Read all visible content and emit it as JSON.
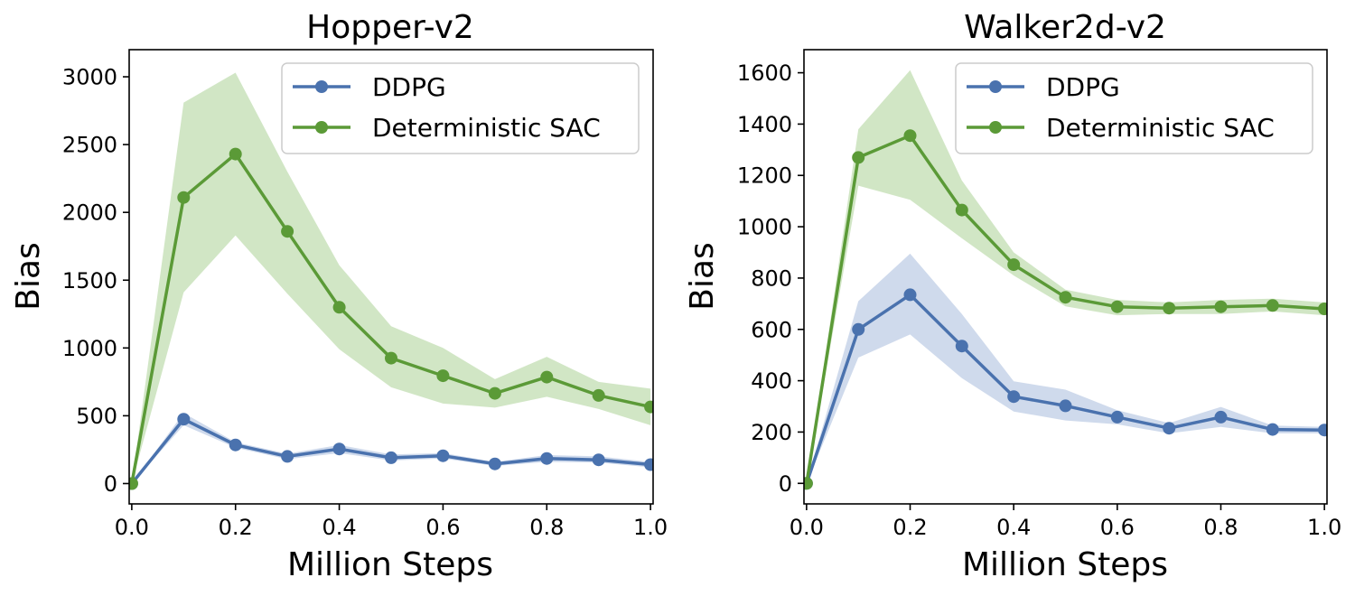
{
  "colors": {
    "ddpg": "#4a72ae",
    "ddpg_fill": "#a8bcdc",
    "dsac": "#5b9a37",
    "dsac_fill": "#acd295",
    "axis": "#000000",
    "legend_border": "#cccccc"
  },
  "chart_data": [
    {
      "type": "line",
      "title": "Hopper-v2",
      "xlabel": "Million Steps",
      "ylabel": "Bias",
      "xlim": [
        -0.005,
        1.005
      ],
      "ylim": [
        -150,
        3200
      ],
      "xticks": [
        0.0,
        0.2,
        0.4,
        0.6,
        0.8,
        1.0
      ],
      "xtick_labels": [
        "0.0",
        "0.2",
        "0.4",
        "0.6",
        "0.8",
        "1.0"
      ],
      "yticks": [
        0,
        500,
        1000,
        1500,
        2000,
        2500,
        3000
      ],
      "ytick_labels": [
        "0",
        "500",
        "1000",
        "1500",
        "2000",
        "2500",
        "3000"
      ],
      "legend_position": "top-right",
      "grid": false,
      "x": [
        0.0,
        0.1,
        0.2,
        0.3,
        0.4,
        0.5,
        0.6,
        0.7,
        0.8,
        0.9,
        1.0
      ],
      "series": [
        {
          "name": "DDPG",
          "values": [
            0,
            475,
            285,
            200,
            255,
            190,
            205,
            145,
            185,
            175,
            140
          ],
          "lower": [
            0,
            430,
            265,
            180,
            225,
            170,
            185,
            130,
            160,
            155,
            120
          ],
          "upper": [
            0,
            520,
            305,
            220,
            285,
            215,
            225,
            160,
            210,
            200,
            160
          ]
        },
        {
          "name": "Deterministic SAC",
          "values": [
            0,
            2110,
            2430,
            1860,
            1300,
            925,
            795,
            665,
            785,
            650,
            565
          ],
          "lower": [
            0,
            1410,
            1830,
            1400,
            990,
            710,
            590,
            560,
            640,
            550,
            430
          ],
          "upper": [
            0,
            2810,
            3030,
            2300,
            1610,
            1160,
            1000,
            770,
            935,
            750,
            700
          ]
        }
      ]
    },
    {
      "type": "line",
      "title": "Walker2d-v2",
      "xlabel": "Million Steps",
      "ylabel": "Bias",
      "xlim": [
        -0.005,
        1.005
      ],
      "ylim": [
        -80,
        1690
      ],
      "xticks": [
        0.0,
        0.2,
        0.4,
        0.6,
        0.8,
        1.0
      ],
      "xtick_labels": [
        "0.0",
        "0.2",
        "0.4",
        "0.6",
        "0.8",
        "1.0"
      ],
      "yticks": [
        0,
        200,
        400,
        600,
        800,
        1000,
        1200,
        1400,
        1600
      ],
      "ytick_labels": [
        "0",
        "200",
        "400",
        "600",
        "800",
        "1000",
        "1200",
        "1400",
        "1600"
      ],
      "legend_position": "top-right",
      "grid": false,
      "x": [
        0.0,
        0.1,
        0.2,
        0.3,
        0.4,
        0.5,
        0.6,
        0.7,
        0.8,
        0.9,
        1.0
      ],
      "series": [
        {
          "name": "DDPG",
          "values": [
            0,
            600,
            735,
            535,
            338,
            302,
            258,
            215,
            258,
            210,
            208
          ],
          "lower": [
            0,
            490,
            580,
            410,
            280,
            245,
            230,
            195,
            220,
            195,
            195
          ],
          "upper": [
            0,
            710,
            895,
            660,
            398,
            365,
            285,
            235,
            298,
            225,
            220
          ]
        },
        {
          "name": "Deterministic SAC",
          "values": [
            0,
            1270,
            1355,
            1065,
            852,
            725,
            688,
            683,
            688,
            693,
            680
          ],
          "lower": [
            0,
            1160,
            1105,
            955,
            810,
            690,
            655,
            660,
            660,
            670,
            655
          ],
          "upper": [
            0,
            1380,
            1610,
            1180,
            900,
            755,
            715,
            705,
            715,
            720,
            705
          ]
        }
      ]
    }
  ]
}
